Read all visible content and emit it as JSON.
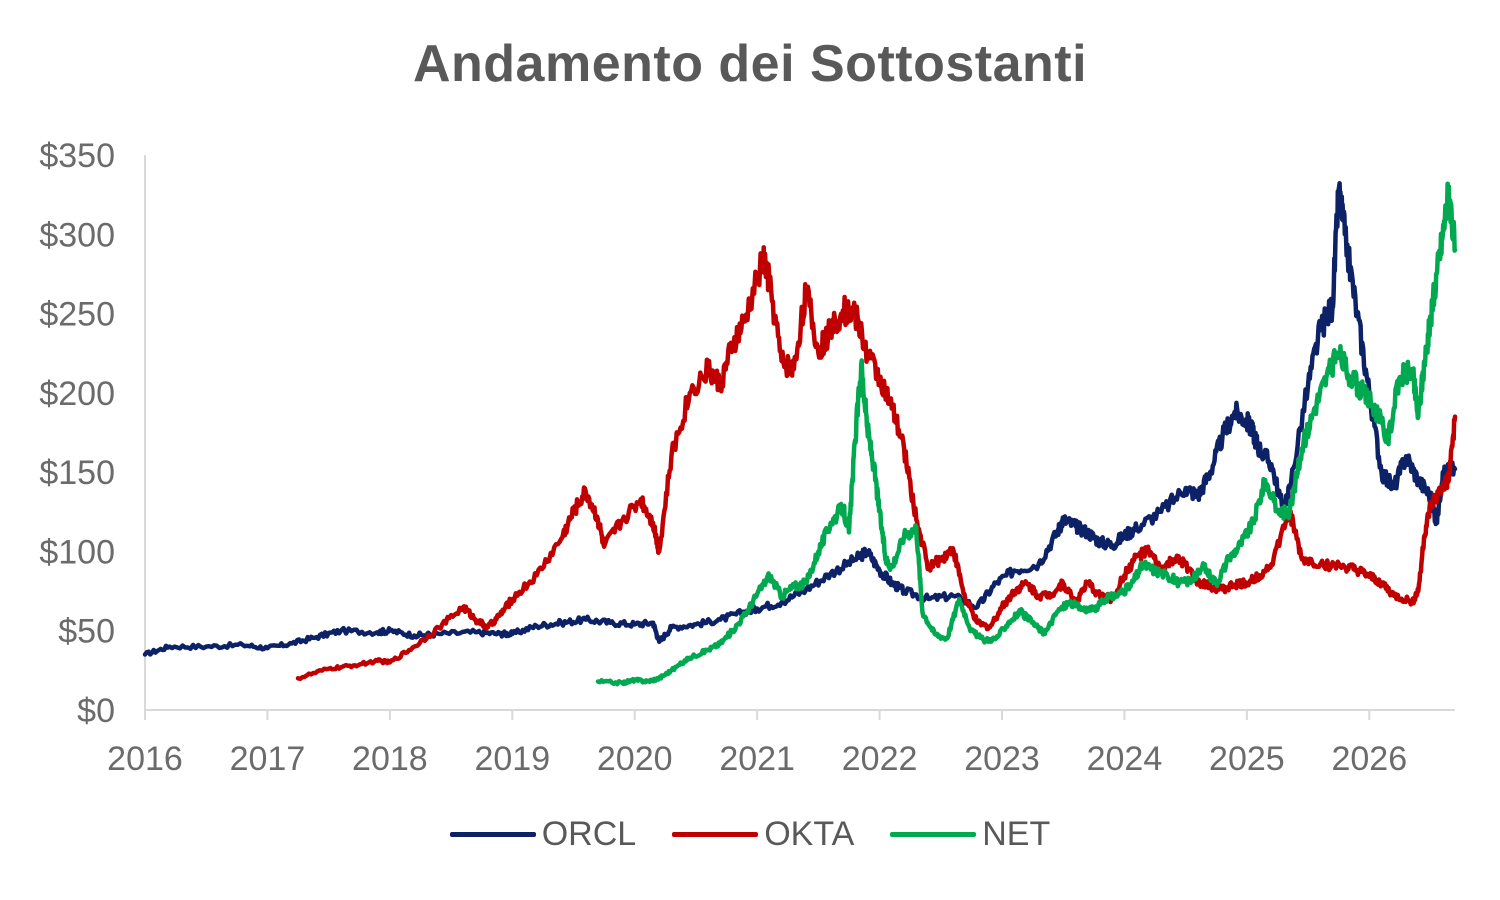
{
  "chart_data": {
    "type": "line",
    "title": "Andamento dei Sottostanti",
    "xlabel": "",
    "ylabel": "",
    "xlim": [
      2016,
      2026.7
    ],
    "ylim": [
      0,
      350
    ],
    "x_ticks": [
      2016,
      2017,
      2018,
      2019,
      2020,
      2021,
      2022,
      2023,
      2024,
      2025,
      2026
    ],
    "x_tick_labels": [
      "2016",
      "2017",
      "2018",
      "2019",
      "2020",
      "2021",
      "2022",
      "2023",
      "2024",
      "2025",
      "2026"
    ],
    "y_ticks": [
      0,
      50,
      100,
      150,
      200,
      250,
      300,
      350
    ],
    "y_tick_labels": [
      "$0",
      "$50",
      "$100",
      "$150",
      "$200",
      "$250",
      "$300",
      "$350"
    ],
    "grid": false,
    "legend": "bottom",
    "series": [
      {
        "name": "ORCL",
        "color": "#0d2266",
        "points": [
          [
            2016.0,
            35
          ],
          [
            2016.2,
            40
          ],
          [
            2016.5,
            40
          ],
          [
            2016.8,
            41
          ],
          [
            2017.0,
            39
          ],
          [
            2017.2,
            42
          ],
          [
            2017.4,
            46
          ],
          [
            2017.6,
            50
          ],
          [
            2017.9,
            49
          ],
          [
            2018.0,
            50
          ],
          [
            2018.2,
            47
          ],
          [
            2018.4,
            48
          ],
          [
            2018.7,
            49
          ],
          [
            2018.9,
            48
          ],
          [
            2019.0,
            48
          ],
          [
            2019.2,
            53
          ],
          [
            2019.4,
            55
          ],
          [
            2019.6,
            57
          ],
          [
            2019.8,
            55
          ],
          [
            2020.0,
            54
          ],
          [
            2020.15,
            55
          ],
          [
            2020.2,
            43
          ],
          [
            2020.3,
            52
          ],
          [
            2020.5,
            54
          ],
          [
            2020.7,
            57
          ],
          [
            2020.9,
            62
          ],
          [
            2021.0,
            64
          ],
          [
            2021.2,
            68
          ],
          [
            2021.4,
            76
          ],
          [
            2021.6,
            86
          ],
          [
            2021.8,
            95
          ],
          [
            2021.9,
            100
          ],
          [
            2022.0,
            88
          ],
          [
            2022.1,
            80
          ],
          [
            2022.2,
            75
          ],
          [
            2022.4,
            70
          ],
          [
            2022.6,
            72
          ],
          [
            2022.8,
            65
          ],
          [
            2022.95,
            80
          ],
          [
            2023.1,
            88
          ],
          [
            2023.3,
            92
          ],
          [
            2023.45,
            112
          ],
          [
            2023.5,
            120
          ],
          [
            2023.6,
            116
          ],
          [
            2023.7,
            112
          ],
          [
            2023.8,
            106
          ],
          [
            2023.9,
            104
          ],
          [
            2024.0,
            110
          ],
          [
            2024.1,
            115
          ],
          [
            2024.3,
            125
          ],
          [
            2024.5,
            140
          ],
          [
            2024.6,
            135
          ],
          [
            2024.7,
            150
          ],
          [
            2024.8,
            172
          ],
          [
            2024.9,
            188
          ],
          [
            2025.0,
            182
          ],
          [
            2025.05,
            175
          ],
          [
            2025.1,
            165
          ],
          [
            2025.2,
            155
          ],
          [
            2025.3,
            125
          ],
          [
            2025.35,
            140
          ],
          [
            2025.5,
            205
          ],
          [
            2025.6,
            240
          ],
          [
            2025.7,
            255
          ],
          [
            2025.75,
            328
          ],
          [
            2025.8,
            300
          ],
          [
            2025.9,
            250
          ],
          [
            2026.0,
            200
          ],
          [
            2026.1,
            150
          ],
          [
            2026.2,
            140
          ],
          [
            2026.3,
            160
          ],
          [
            2026.4,
            145
          ],
          [
            2026.5,
            135
          ],
          [
            2026.55,
            118
          ],
          [
            2026.6,
            150
          ],
          [
            2026.7,
            152
          ]
        ]
      },
      {
        "name": "OKTA",
        "color": "#c00000",
        "points": [
          [
            2017.25,
            20
          ],
          [
            2017.5,
            26
          ],
          [
            2017.7,
            28
          ],
          [
            2017.9,
            31
          ],
          [
            2018.0,
            30
          ],
          [
            2018.2,
            40
          ],
          [
            2018.4,
            52
          ],
          [
            2018.6,
            65
          ],
          [
            2018.7,
            57
          ],
          [
            2018.8,
            52
          ],
          [
            2018.9,
            60
          ],
          [
            2019.0,
            70
          ],
          [
            2019.2,
            85
          ],
          [
            2019.4,
            108
          ],
          [
            2019.5,
            125
          ],
          [
            2019.6,
            138
          ],
          [
            2019.7,
            120
          ],
          [
            2019.75,
            103
          ],
          [
            2019.9,
            120
          ],
          [
            2020.05,
            133
          ],
          [
            2020.15,
            118
          ],
          [
            2020.2,
            100
          ],
          [
            2020.3,
            160
          ],
          [
            2020.45,
            200
          ],
          [
            2020.6,
            215
          ],
          [
            2020.7,
            205
          ],
          [
            2020.8,
            230
          ],
          [
            2020.9,
            245
          ],
          [
            2021.05,
            285
          ],
          [
            2021.1,
            270
          ],
          [
            2021.2,
            220
          ],
          [
            2021.3,
            215
          ],
          [
            2021.4,
            265
          ],
          [
            2021.5,
            225
          ],
          [
            2021.6,
            240
          ],
          [
            2021.7,
            252
          ],
          [
            2021.8,
            250
          ],
          [
            2021.9,
            225
          ],
          [
            2022.0,
            210
          ],
          [
            2022.1,
            190
          ],
          [
            2022.2,
            165
          ],
          [
            2022.3,
            120
          ],
          [
            2022.4,
            90
          ],
          [
            2022.5,
            95
          ],
          [
            2022.6,
            102
          ],
          [
            2022.7,
            70
          ],
          [
            2022.8,
            55
          ],
          [
            2022.9,
            52
          ],
          [
            2023.0,
            65
          ],
          [
            2023.1,
            75
          ],
          [
            2023.2,
            80
          ],
          [
            2023.3,
            72
          ],
          [
            2023.4,
            73
          ],
          [
            2023.5,
            80
          ],
          [
            2023.6,
            68
          ],
          [
            2023.7,
            80
          ],
          [
            2023.8,
            72
          ],
          [
            2023.9,
            70
          ],
          [
            2024.0,
            85
          ],
          [
            2024.1,
            97
          ],
          [
            2024.2,
            100
          ],
          [
            2024.3,
            88
          ],
          [
            2024.4,
            95
          ],
          [
            2024.5,
            92
          ],
          [
            2024.6,
            80
          ],
          [
            2024.7,
            78
          ],
          [
            2024.8,
            76
          ],
          [
            2024.9,
            79
          ],
          [
            2025.0,
            80
          ],
          [
            2025.1,
            85
          ],
          [
            2025.2,
            92
          ],
          [
            2025.35,
            125
          ],
          [
            2025.45,
            95
          ],
          [
            2025.6,
            92
          ],
          [
            2025.8,
            90
          ],
          [
            2025.9,
            88
          ],
          [
            2026.0,
            84
          ],
          [
            2026.1,
            80
          ],
          [
            2026.2,
            72
          ],
          [
            2026.35,
            68
          ],
          [
            2026.4,
            75
          ],
          [
            2026.45,
            110
          ],
          [
            2026.5,
            128
          ],
          [
            2026.6,
            140
          ],
          [
            2026.65,
            145
          ],
          [
            2026.7,
            185
          ]
        ]
      },
      {
        "name": "NET",
        "color": "#00a84f",
        "points": [
          [
            2019.7,
            18
          ],
          [
            2019.9,
            17
          ],
          [
            2020.0,
            19
          ],
          [
            2020.1,
            18
          ],
          [
            2020.2,
            20
          ],
          [
            2020.3,
            25
          ],
          [
            2020.45,
            33
          ],
          [
            2020.6,
            38
          ],
          [
            2020.7,
            42
          ],
          [
            2020.8,
            50
          ],
          [
            2020.9,
            60
          ],
          [
            2021.0,
            73
          ],
          [
            2021.1,
            85
          ],
          [
            2021.2,
            72
          ],
          [
            2021.3,
            78
          ],
          [
            2021.4,
            80
          ],
          [
            2021.5,
            100
          ],
          [
            2021.6,
            118
          ],
          [
            2021.7,
            128
          ],
          [
            2021.75,
            112
          ],
          [
            2021.8,
            170
          ],
          [
            2021.85,
            218
          ],
          [
            2021.9,
            178
          ],
          [
            2021.95,
            155
          ],
          [
            2022.0,
            125
          ],
          [
            2022.05,
            95
          ],
          [
            2022.1,
            90
          ],
          [
            2022.2,
            110
          ],
          [
            2022.3,
            115
          ],
          [
            2022.35,
            62
          ],
          [
            2022.45,
            48
          ],
          [
            2022.55,
            45
          ],
          [
            2022.65,
            70
          ],
          [
            2022.75,
            50
          ],
          [
            2022.85,
            44
          ],
          [
            2022.95,
            45
          ],
          [
            2023.05,
            55
          ],
          [
            2023.15,
            62
          ],
          [
            2023.25,
            55
          ],
          [
            2023.35,
            48
          ],
          [
            2023.45,
            62
          ],
          [
            2023.55,
            68
          ],
          [
            2023.65,
            64
          ],
          [
            2023.75,
            63
          ],
          [
            2023.85,
            70
          ],
          [
            2023.95,
            73
          ],
          [
            2024.05,
            78
          ],
          [
            2024.15,
            92
          ],
          [
            2024.25,
            88
          ],
          [
            2024.35,
            85
          ],
          [
            2024.45,
            80
          ],
          [
            2024.55,
            82
          ],
          [
            2024.65,
            90
          ],
          [
            2024.75,
            80
          ],
          [
            2024.85,
            95
          ],
          [
            2024.95,
            105
          ],
          [
            2025.05,
            118
          ],
          [
            2025.15,
            145
          ],
          [
            2025.25,
            125
          ],
          [
            2025.35,
            125
          ],
          [
            2025.45,
            165
          ],
          [
            2025.55,
            190
          ],
          [
            2025.65,
            210
          ],
          [
            2025.75,
            225
          ],
          [
            2025.85,
            210
          ],
          [
            2025.95,
            200
          ],
          [
            2026.05,
            190
          ],
          [
            2026.15,
            170
          ],
          [
            2026.25,
            210
          ],
          [
            2026.35,
            215
          ],
          [
            2026.4,
            185
          ],
          [
            2026.45,
            220
          ],
          [
            2026.5,
            245
          ],
          [
            2026.55,
            275
          ],
          [
            2026.6,
            300
          ],
          [
            2026.65,
            330
          ],
          [
            2026.7,
            290
          ]
        ]
      }
    ]
  }
}
